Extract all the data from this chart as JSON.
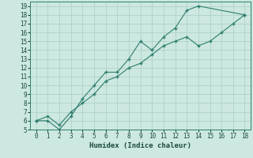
{
  "xlabel": "Humidex (Indice chaleur)",
  "bg_color": "#cce8e0",
  "grid_color": "#aaccc4",
  "line_color": "#2e7d6e",
  "xlim": [
    -0.5,
    18.5
  ],
  "ylim": [
    5,
    19.5
  ],
  "xticks": [
    0,
    1,
    2,
    3,
    4,
    5,
    6,
    7,
    8,
    9,
    10,
    11,
    12,
    13,
    14,
    15,
    16,
    17,
    18
  ],
  "yticks": [
    5,
    6,
    7,
    8,
    9,
    10,
    11,
    12,
    13,
    14,
    15,
    16,
    17,
    18,
    19
  ],
  "line1_x": [
    0,
    1,
    2,
    3,
    4,
    5,
    6,
    7,
    8,
    9,
    10,
    11,
    12,
    13,
    14,
    18
  ],
  "line1_y": [
    6,
    6,
    5,
    6.5,
    8.5,
    10,
    11.5,
    11.5,
    13,
    15,
    14,
    15.5,
    16.5,
    18.5,
    19,
    18
  ],
  "line2_x": [
    0,
    1,
    2,
    3,
    4,
    5,
    6,
    7,
    8,
    9,
    10,
    11,
    12,
    13,
    14,
    15,
    16,
    17,
    18
  ],
  "line2_y": [
    6,
    6.5,
    5.5,
    7,
    8,
    9,
    10.5,
    11,
    12,
    12.5,
    13.5,
    14.5,
    15,
    15.5,
    14.5,
    15,
    16,
    17,
    18
  ]
}
